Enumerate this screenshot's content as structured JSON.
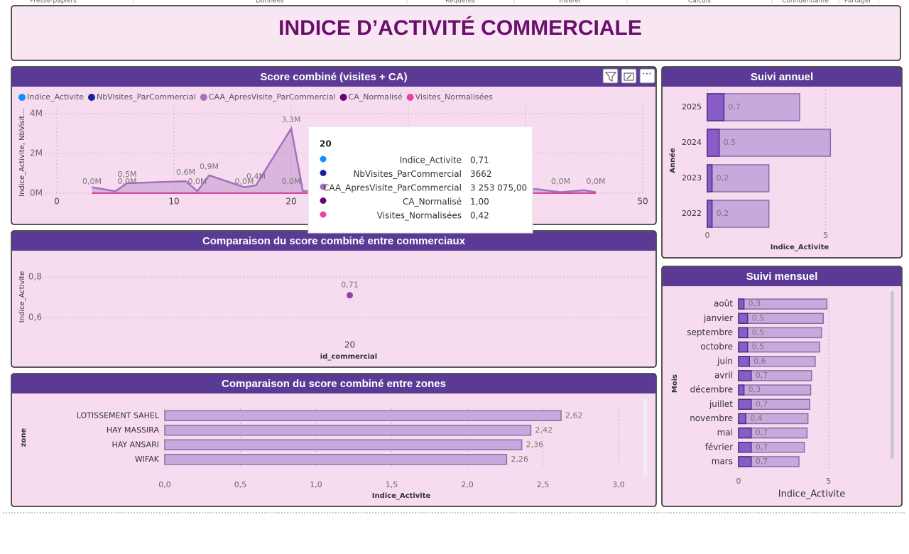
{
  "ribbon": [
    "Presse-papiers",
    "Données",
    "Requêtes",
    "Insérer",
    "Calculs",
    "Confidentialité",
    "Partager"
  ],
  "title": "INDICE D’ACTIVITÉ COMMERCIALE",
  "chart_data": [
    {
      "type": "line",
      "title": "Score combiné (visites + CA)",
      "ylabel": "Indice_Activite, NbVisit...",
      "x": [
        3,
        5,
        6,
        11,
        12,
        13,
        16,
        17,
        20,
        21,
        25,
        30,
        35,
        41,
        43,
        45,
        46
      ],
      "xlim": [
        0,
        50
      ],
      "xticks": [
        0,
        10,
        20,
        30,
        40,
        50
      ],
      "ylim": [
        0,
        4000000
      ],
      "yticks": [
        {
          "value": 0,
          "label": "0M"
        },
        {
          "value": 2000000,
          "label": "2M"
        },
        {
          "value": 4000000,
          "label": "4M"
        }
      ],
      "grid": true,
      "legend": "top-left",
      "series": [
        {
          "name": "Indice_Activite",
          "color": "#118dff",
          "values": [
            0.6,
            0.5,
            0.7,
            0.6,
            0.5,
            0.8,
            0.6,
            0.7,
            0.71,
            0.5,
            0.6,
            0.5,
            0.6,
            0.6,
            0.5,
            0.6,
            0.5
          ]
        },
        {
          "name": "NbVisites_ParCommercial",
          "color": "#12239e",
          "values": [
            2800,
            3100,
            2500,
            3400,
            2900,
            3000,
            2700,
            3300,
            3662,
            2600,
            3000,
            2900,
            3100,
            2800,
            3000,
            2700,
            2900
          ],
          "value_labels": [
            "0,0M",
            null,
            "0,0M",
            null,
            "0,0M",
            null,
            "0,0M",
            null,
            "0,0M",
            null,
            null,
            null,
            null,
            null,
            "0,0M",
            null,
            "0,0M"
          ]
        },
        {
          "name": "CAA_ApresVisite_ParCommercial",
          "color": "#a66fbf",
          "style": "area",
          "values": [
            300000,
            100000,
            500000,
            600000,
            100000,
            900000,
            300000,
            400000,
            3253075,
            100000,
            200000,
            150000,
            200000,
            200000,
            50000,
            150000,
            50000
          ],
          "value_labels": [
            null,
            null,
            "0,5M",
            "0,6M",
            null,
            "0,9M",
            null,
            "0,4M",
            "3,3M",
            null,
            null,
            null,
            null,
            null,
            null,
            null,
            null
          ]
        },
        {
          "name": "CA_Normalisé",
          "color": "#6b007b",
          "values": [
            0.1,
            0.0,
            0.2,
            0.2,
            0.0,
            0.3,
            0.1,
            0.1,
            1.0,
            0.0,
            0.1,
            0.0,
            0.1,
            0.1,
            0.0,
            0.0,
            0.0
          ]
        },
        {
          "name": "Visites_Normalisées",
          "color": "#e044a7",
          "values": [
            0.3,
            0.4,
            0.2,
            0.5,
            0.3,
            0.4,
            0.3,
            0.4,
            0.42,
            0.3,
            0.4,
            0.3,
            0.4,
            0.3,
            0.4,
            0.3,
            0.3
          ]
        }
      ]
    },
    {
      "type": "scatter",
      "title": "Comparaison du score combiné entre commerciaux",
      "categories": [
        "20"
      ],
      "values": [
        0.71
      ],
      "value_labels": [
        "0,71"
      ],
      "color": "#8e44a5",
      "ylim": [
        0.55,
        0.85
      ],
      "yticks": [
        {
          "value": 0.6,
          "label": "0,6"
        },
        {
          "value": 0.8,
          "label": "0,8"
        }
      ],
      "xlabel": "id_commercial",
      "ylabel": "Indice_Activite",
      "grid": true
    },
    {
      "type": "bar",
      "orientation": "horizontal",
      "title": "Comparaison du score combiné entre zones",
      "categories": [
        "LOTISSEMENT SAHEL",
        "HAY MASSIRA",
        "HAY ANSARI",
        "WIFAK"
      ],
      "values": [
        2.62,
        2.42,
        2.36,
        2.26
      ],
      "value_labels": [
        "2,62",
        "2,42",
        "2,36",
        "2,26"
      ],
      "color": "#c9a9dd",
      "xlim": [
        0,
        3
      ],
      "xticks": [
        {
          "value": 0,
          "label": "0,0"
        },
        {
          "value": 0.5,
          "label": "0,5"
        },
        {
          "value": 1,
          "label": "1,0"
        },
        {
          "value": 1.5,
          "label": "1,5"
        },
        {
          "value": 2,
          "label": "2,0"
        },
        {
          "value": 2.5,
          "label": "2,5"
        },
        {
          "value": 3,
          "label": "3,0"
        }
      ],
      "xlabel": "Indice_Activite",
      "ylabel": "zone",
      "grid": true
    },
    {
      "type": "bar",
      "orientation": "horizontal",
      "title": "Suivi annuel",
      "categories": [
        "2025",
        "2024",
        "2023",
        "2022"
      ],
      "series": [
        {
          "color": "#c9a9dd",
          "values": [
            3.9,
            5.2,
            2.6,
            2.6
          ]
        },
        {
          "color": "#8a5cc8",
          "values": [
            0.7,
            0.5,
            0.2,
            0.2
          ],
          "value_labels": [
            "0,7",
            "0,5",
            "0,2",
            "0,2"
          ]
        }
      ],
      "xlim": [
        0,
        7.5
      ],
      "xticks": [
        0,
        5
      ],
      "xlabel": "Indice_Activite",
      "ylabel": "Année",
      "grid": true
    },
    {
      "type": "bar",
      "orientation": "horizontal",
      "title": "Suivi mensuel",
      "categories": [
        "août",
        "janvier",
        "septembre",
        "octobre",
        "juin",
        "avril",
        "décembre",
        "juillet",
        "novembre",
        "mai",
        "février",
        "mars"
      ],
      "series": [
        {
          "color": "#c9a9dd",
          "values": [
            4.9,
            4.7,
            4.6,
            4.5,
            4.25,
            4.05,
            4.0,
            3.95,
            3.85,
            3.8,
            3.65,
            3.35
          ]
        },
        {
          "color": "#8a5cc8",
          "values": [
            0.3,
            0.5,
            0.5,
            0.5,
            0.6,
            0.7,
            0.3,
            0.7,
            0.4,
            0.7,
            0.7,
            0.7
          ],
          "value_labels": [
            "0,3",
            "0,5",
            "0,5",
            "0,5",
            "0,6",
            "0,7",
            "0,3",
            "0,7",
            "0,4",
            "0,7",
            "0,7",
            "0,7"
          ]
        }
      ],
      "xlim": [
        0,
        8
      ],
      "xticks": [
        0,
        5
      ],
      "xlabel": "Indice_Activite",
      "ylabel": "Mois",
      "grid": true
    }
  ],
  "tooltip": {
    "title": "20",
    "rows": [
      {
        "name": "Indice_Activite",
        "value": "0,71",
        "color": "#118dff"
      },
      {
        "name": "NbVisites_ParCommercial",
        "value": "3662",
        "color": "#12239e"
      },
      {
        "name": "CAA_ApresVisite_ParCommercial",
        "value": "3 253 075,00",
        "color": "#a66fbf"
      },
      {
        "name": "CA_Normalisé",
        "value": "1,00",
        "color": "#6b007b"
      },
      {
        "name": "Visites_Normalisées",
        "value": "0,42",
        "color": "#e044a7"
      }
    ]
  }
}
